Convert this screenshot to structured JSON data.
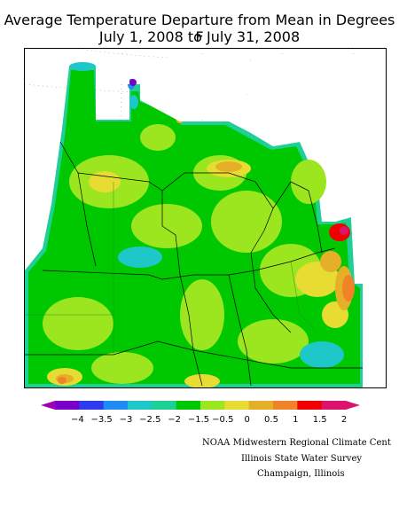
{
  "title_line1": "Average Temperature Departure from Mean in Degrees F",
  "title_line2": "July 1, 2008 to July 31, 2008",
  "legend": {
    "ticks": [
      "−4",
      "−3.5",
      "−3",
      "−2.5",
      "−2",
      "−1.5",
      "−0.5",
      "0",
      "0.5",
      "1",
      "1.5",
      "2"
    ],
    "colors": [
      "#7a00c8",
      "#2e3cf0",
      "#1e8cf0",
      "#1ec8c8",
      "#1ecf96",
      "#00c800",
      "#9be61e",
      "#e6dc32",
      "#e6af28",
      "#f08228",
      "#f00000",
      "#dc146e"
    ],
    "low_arrow_color": "#a000b4",
    "high_arrow_color": "#dc146e"
  },
  "credits": {
    "line1": "NOAA Midwestern Regional Climate Cent",
    "line2": "Illinois State Water Survey",
    "line3": "Champaign, Illinois"
  }
}
